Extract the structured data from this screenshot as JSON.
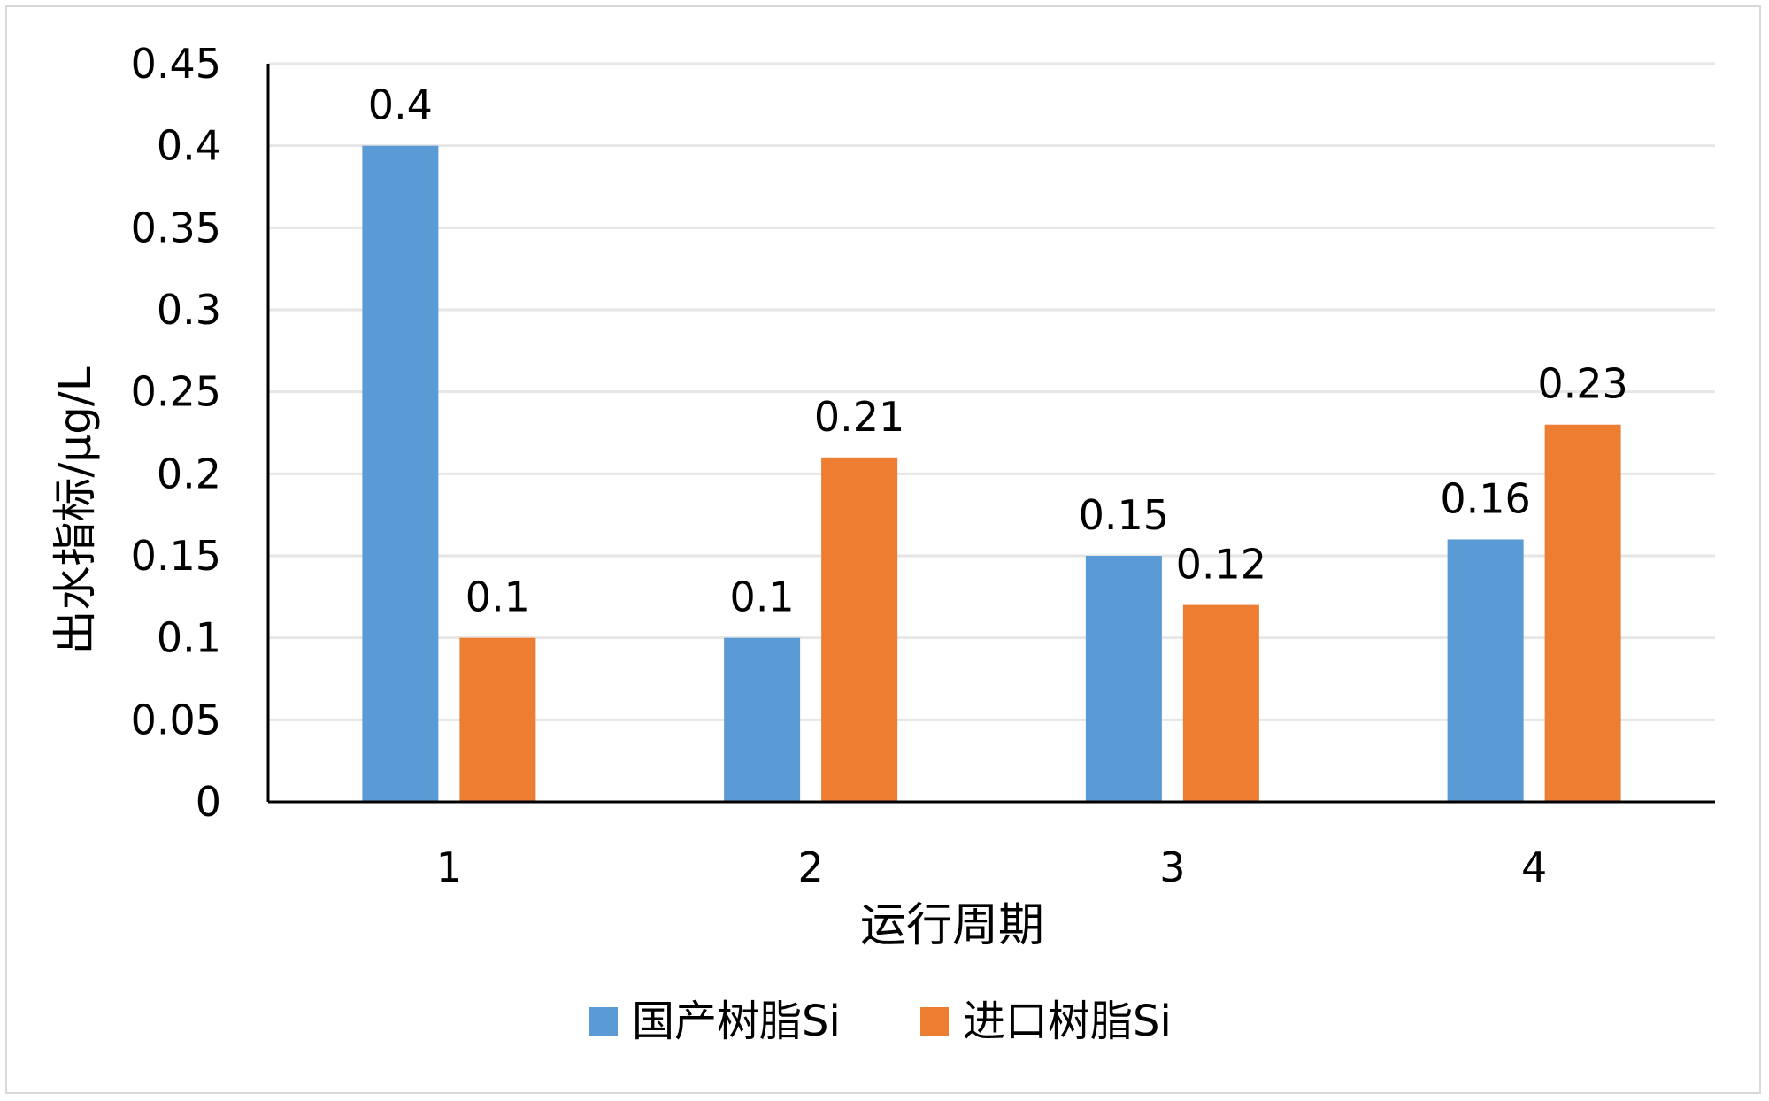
{
  "chart_data": {
    "type": "bar",
    "categories": [
      "1",
      "2",
      "3",
      "4"
    ],
    "series": [
      {
        "name": "国产树脂Si",
        "values": [
          0.4,
          0.1,
          0.15,
          0.16
        ],
        "color": "#5b9bd5"
      },
      {
        "name": "进口树脂Si",
        "values": [
          0.1,
          0.21,
          0.12,
          0.23
        ],
        "color": "#ed7d31"
      }
    ],
    "data_labels": [
      [
        "0.4",
        "0.1",
        "0.15",
        "0.16"
      ],
      [
        "0.1",
        "0.21",
        "0.12",
        "0.23"
      ]
    ],
    "xlabel": "运行周期",
    "ylabel": "出水指标/μg/L",
    "ylim": [
      0,
      0.45
    ],
    "yticks": [
      0,
      0.05,
      0.1,
      0.15,
      0.2,
      0.25,
      0.3,
      0.35,
      0.4,
      0.45
    ],
    "ytick_labels": [
      "0",
      "0.05",
      "0.1",
      "0.15",
      "0.2",
      "0.25",
      "0.3",
      "0.35",
      "0.4",
      "0.45"
    ],
    "grid": true,
    "grid_color": "#e6e6e6",
    "legend_position": "bottom"
  }
}
